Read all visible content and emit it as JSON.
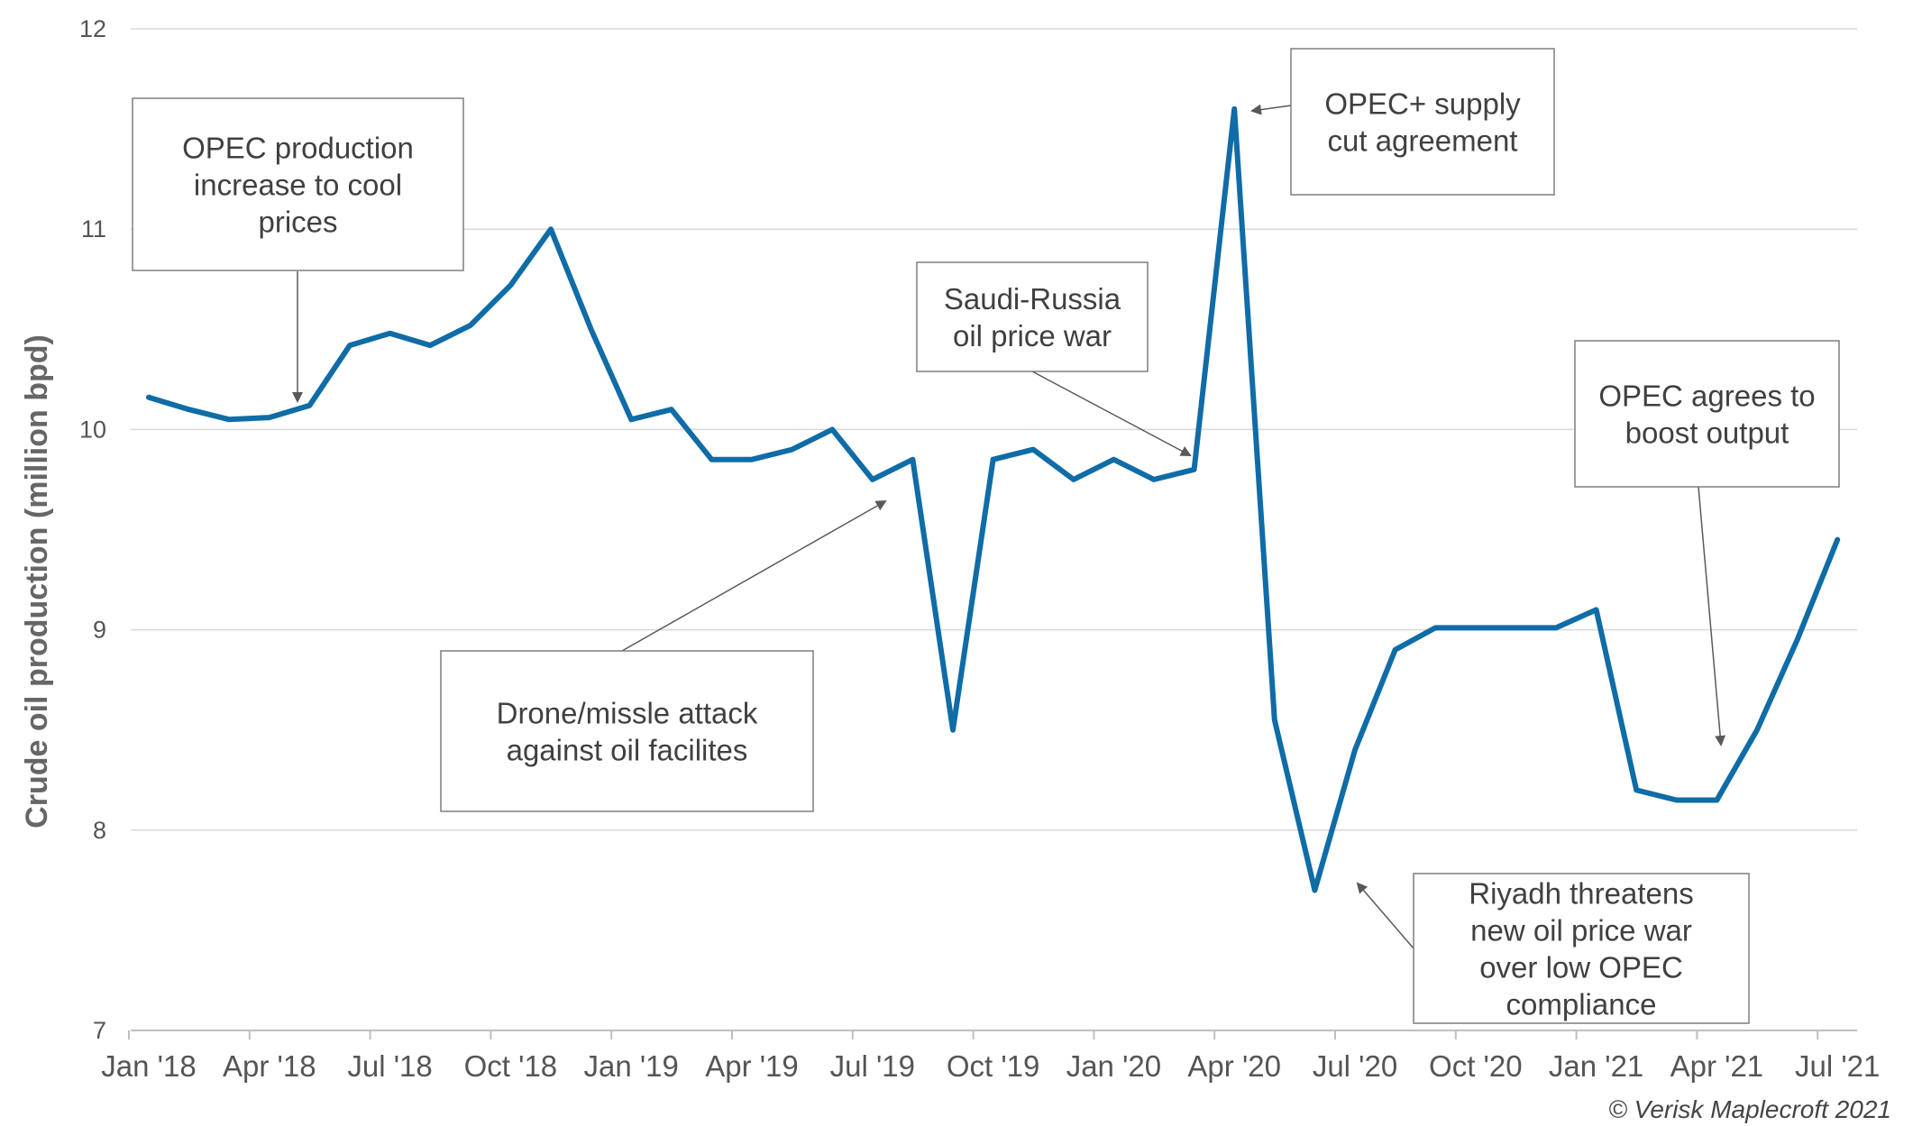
{
  "chart_data": {
    "type": "line",
    "ylabel": "Crude oil production (million bpd)",
    "ylim": [
      7,
      12
    ],
    "yticks": [
      7,
      8,
      9,
      10,
      11,
      12
    ],
    "xtick_labels": [
      "Jan '18",
      "Apr '18",
      "Jul '18",
      "Oct '18",
      "Jan '19",
      "Apr '19",
      "Jul '19",
      "Oct '19",
      "Jan '20",
      "Apr '20",
      "Jul '20",
      "Oct '20",
      "Jan '21",
      "Apr '21",
      "Jul '21"
    ],
    "grid": true,
    "series": [
      {
        "color": "#0f6ca7",
        "x": [
          "Jan '18",
          "Feb '18",
          "Mar '18",
          "Apr '18",
          "May '18",
          "Jun '18",
          "Jul '18",
          "Aug '18",
          "Sep '18",
          "Oct '18",
          "Nov '18",
          "Dec '18",
          "Jan '19",
          "Feb '19",
          "Mar '19",
          "Apr '19",
          "May '19",
          "Jun '19",
          "Jul '19",
          "Aug '19",
          "Sep '19",
          "Oct '19",
          "Nov '19",
          "Dec '19",
          "Jan '20",
          "Feb '20",
          "Mar '20",
          "Apr '20",
          "May '20",
          "Jun '20",
          "Jul '20",
          "Aug '20",
          "Sep '20",
          "Oct '20",
          "Nov '20",
          "Dec '20",
          "Jan '21",
          "Feb '21",
          "Mar '21",
          "Apr '21",
          "May '21",
          "Jun '21",
          "Jul '21"
        ],
        "values": [
          10.16,
          10.1,
          10.05,
          10.06,
          10.12,
          10.42,
          10.48,
          10.42,
          10.52,
          10.72,
          11.0,
          10.5,
          10.05,
          10.1,
          9.85,
          9.85,
          9.9,
          10.0,
          9.75,
          9.85,
          8.5,
          9.85,
          9.9,
          9.75,
          9.85,
          9.75,
          9.8,
          11.6,
          8.55,
          7.7,
          8.4,
          8.9,
          9.01,
          9.01,
          9.01,
          9.01,
          9.1,
          8.2,
          8.15,
          8.15,
          8.5,
          8.95,
          9.45
        ]
      }
    ],
    "annotations": [
      {
        "id": "opec-increase",
        "lines": [
          "OPEC production",
          "increase to cool",
          "prices"
        ],
        "points_to": "May '18"
      },
      {
        "id": "drone-attack",
        "lines": [
          "Drone/missle attack",
          "against oil facilites"
        ],
        "points_to": "Aug '19"
      },
      {
        "id": "price-war",
        "lines": [
          "Saudi-Russia",
          "oil price war"
        ],
        "points_to": "Mar '20"
      },
      {
        "id": "supply-cut",
        "lines": [
          "OPEC+ supply",
          "cut agreement"
        ],
        "points_to": "Apr '20"
      },
      {
        "id": "riyadh-threat",
        "lines": [
          "Riyadh threatens",
          "new oil price war",
          "over low OPEC",
          "compliance"
        ],
        "points_to": "Jun '20"
      },
      {
        "id": "boost-output",
        "lines": [
          "OPEC agrees to",
          "boost output"
        ],
        "points_to": "May '21"
      }
    ],
    "copyright": "© Verisk Maplecroft 2021"
  }
}
